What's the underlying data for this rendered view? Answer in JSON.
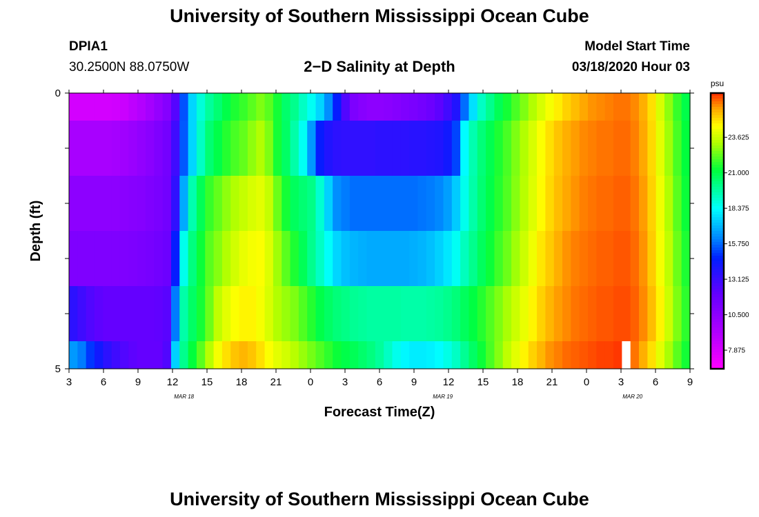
{
  "page": {
    "title": "University of Southern Mississippi Ocean Cube",
    "footer_title": "University of Southern Mississippi Ocean Cube",
    "station_id": "DPIA1",
    "station_coords": "30.2500N 88.0750W",
    "plot_subtitle": "2−D Salinity at Depth",
    "model_start_label": "Model Start Time",
    "model_start_value": "03/18/2020 Hour 03"
  },
  "chart_data": {
    "type": "heatmap",
    "title": "2-D Salinity at Depth",
    "xlabel": "Forecast Time(Z)",
    "ylabel": "Depth (ft)",
    "x_hours": [
      3,
      3.75,
      4.5,
      5.25,
      6,
      6.75,
      7.5,
      8.25,
      9,
      9.75,
      10.5,
      11.25,
      12,
      12.75,
      13.5,
      14.25,
      15,
      15.75,
      16.5,
      17.25,
      18,
      18.75,
      19.5,
      20.25,
      21,
      21.75,
      22.5,
      23.25,
      24,
      24.75,
      25.5,
      26.25,
      27,
      27.75,
      28.5,
      29.25,
      30,
      30.75,
      31.5,
      32.25,
      33,
      33.75,
      34.5,
      35.25,
      36,
      36.75,
      37.5,
      38.25,
      39,
      39.75,
      40.5,
      41.25,
      42,
      42.75,
      43.5,
      44.25,
      45,
      45.75,
      46.5,
      47.25,
      48,
      48.75,
      49.5,
      50.25,
      51,
      51.75,
      52.5,
      53.25,
      54,
      54.75,
      55.5,
      56.25,
      57
    ],
    "depth_rows_ft": [
      0.25,
      1.0,
      2.0,
      3.0,
      4.0,
      4.75
    ],
    "salinity_psu": [
      [
        8.0,
        8.0,
        8.0,
        8.0,
        8.0,
        8.1,
        8.3,
        8.7,
        9.1,
        9.6,
        10.2,
        10.8,
        12.4,
        15.4,
        17.6,
        18.9,
        19.8,
        20.4,
        21.0,
        21.5,
        21.8,
        22.2,
        22.6,
        22.2,
        21.4,
        20.5,
        20.0,
        19.2,
        18.5,
        17.6,
        16.3,
        14.5,
        12.5,
        11.1,
        10.7,
        10.5,
        10.5,
        10.6,
        10.8,
        11.0,
        11.2,
        11.4,
        11.7,
        12.2,
        12.9,
        13.8,
        15.8,
        17.8,
        19.2,
        20.0,
        20.8,
        21.4,
        22.0,
        22.6,
        23.2,
        23.8,
        24.3,
        24.7,
        25.1,
        25.4,
        25.7,
        25.9,
        26.0,
        26.1,
        26.2,
        26.2,
        26.0,
        25.6,
        24.9,
        23.8,
        22.8,
        21.8,
        21.0
      ],
      [
        9.5,
        9.5,
        9.5,
        9.5,
        9.5,
        9.6,
        9.8,
        10.0,
        10.3,
        10.6,
        11.0,
        11.4,
        13.0,
        15.5,
        17.6,
        19.2,
        20.4,
        21.0,
        21.6,
        22.0,
        22.3,
        22.8,
        23.2,
        22.6,
        21.4,
        20.6,
        19.6,
        18.5,
        16.5,
        14.5,
        13.8,
        13.5,
        13.4,
        13.4,
        13.4,
        13.4,
        13.5,
        13.5,
        13.5,
        13.5,
        13.6,
        13.6,
        13.7,
        13.8,
        14.2,
        15.2,
        18.3,
        19.5,
        20.3,
        20.9,
        21.5,
        22.0,
        22.6,
        23.2,
        23.8,
        24.4,
        24.9,
        25.3,
        25.6,
        25.8,
        26.0,
        26.1,
        26.2,
        26.2,
        26.3,
        26.3,
        26.1,
        25.7,
        25.0,
        24.0,
        23.0,
        22.0,
        21.2
      ],
      [
        10.5,
        10.5,
        10.5,
        10.5,
        10.5,
        10.5,
        10.6,
        10.7,
        10.8,
        11.0,
        11.2,
        11.5,
        13.4,
        16.8,
        19.5,
        20.8,
        21.8,
        22.3,
        22.8,
        23.2,
        23.5,
        23.8,
        24.0,
        23.5,
        22.4,
        21.4,
        20.7,
        20.4,
        20.1,
        19.0,
        17.5,
        16.3,
        16.0,
        15.8,
        15.8,
        15.8,
        15.8,
        15.8,
        15.8,
        15.8,
        15.8,
        15.9,
        16.0,
        16.2,
        16.6,
        17.4,
        18.6,
        19.6,
        20.4,
        21.0,
        21.6,
        22.1,
        22.7,
        23.3,
        23.9,
        24.5,
        25.0,
        25.4,
        25.7,
        25.9,
        26.1,
        26.2,
        26.3,
        26.3,
        26.4,
        26.4,
        26.2,
        25.8,
        25.1,
        24.2,
        23.2,
        22.2,
        21.3
      ],
      [
        11.0,
        11.0,
        11.0,
        11.0,
        11.0,
        11.0,
        11.0,
        11.1,
        11.2,
        11.3,
        11.5,
        11.7,
        14.5,
        18.6,
        20.2,
        21.3,
        22.2,
        22.7,
        23.2,
        23.7,
        24.1,
        24.3,
        24.4,
        23.9,
        23.0,
        22.2,
        21.5,
        20.8,
        20.0,
        19.2,
        18.4,
        17.6,
        17.2,
        17.0,
        16.9,
        16.8,
        16.8,
        16.8,
        16.8,
        16.8,
        16.9,
        17.0,
        17.2,
        17.5,
        17.9,
        18.5,
        19.3,
        20.0,
        20.7,
        21.3,
        21.9,
        22.4,
        23.0,
        23.6,
        24.2,
        24.8,
        25.2,
        25.6,
        25.9,
        26.1,
        26.2,
        26.3,
        26.4,
        26.4,
        26.5,
        26.5,
        26.3,
        25.9,
        25.2,
        24.3,
        23.4,
        22.4,
        21.5
      ],
      [
        13.5,
        13.0,
        12.5,
        12.2,
        12.0,
        12.0,
        12.0,
        12.0,
        12.0,
        12.0,
        12.1,
        12.3,
        16.0,
        19.6,
        20.6,
        21.4,
        22.4,
        23.4,
        24.0,
        24.4,
        24.6,
        24.6,
        24.3,
        23.8,
        23.2,
        22.9,
        22.6,
        22.1,
        21.6,
        21.0,
        20.6,
        20.3,
        20.1,
        19.9,
        19.8,
        19.7,
        19.7,
        19.7,
        19.7,
        19.6,
        19.6,
        19.6,
        19.7,
        19.8,
        20.0,
        20.3,
        20.7,
        21.1,
        21.6,
        22.1,
        22.6,
        23.1,
        23.6,
        24.1,
        24.6,
        25.1,
        25.5,
        25.8,
        26.0,
        26.2,
        26.3,
        26.4,
        26.5,
        26.5,
        26.6,
        26.6,
        26.4,
        26.0,
        25.4,
        24.6,
        23.6,
        22.6,
        21.7
      ],
      [
        16.5,
        16.0,
        15.0,
        14.2,
        13.5,
        13.0,
        12.5,
        12.2,
        12.0,
        12.0,
        12.0,
        12.5,
        17.5,
        20.0,
        21.2,
        22.2,
        23.3,
        24.3,
        24.9,
        25.3,
        25.5,
        25.3,
        24.9,
        24.4,
        24.0,
        23.7,
        23.3,
        22.9,
        22.5,
        22.1,
        21.7,
        21.3,
        21.0,
        20.8,
        20.5,
        20.2,
        19.8,
        19.2,
        18.6,
        18.2,
        18.0,
        18.0,
        18.1,
        18.3,
        18.7,
        19.2,
        19.9,
        20.6,
        21.3,
        22.0,
        22.7,
        23.4,
        24.0,
        24.6,
        25.1,
        25.5,
        25.9,
        26.1,
        26.3,
        26.4,
        26.5,
        26.6,
        26.7,
        26.7,
        26.8,
        26.6,
        26.2,
        25.6,
        24.9,
        24.0,
        23.1,
        22.2,
        21.4
      ]
    ],
    "missing_cells": [
      {
        "row": 5,
        "col": 65
      }
    ],
    "depth_range_ft": [
      0,
      5
    ],
    "x_range_hours": [
      3,
      57
    ],
    "x_tick_labels": [
      "3",
      "6",
      "9",
      "12",
      "15",
      "18",
      "21",
      "0",
      "3",
      "6",
      "9",
      "12",
      "15",
      "18",
      "21",
      "0",
      "3",
      "6",
      "9"
    ],
    "x_date_labels": [
      {
        "label": "MAR 18",
        "hour": 13
      },
      {
        "label": "MAR 19",
        "hour": 35.5
      },
      {
        "label": "MAR 20",
        "hour": 52
      }
    ],
    "y_tick_labels": [
      "0",
      "5"
    ],
    "colorbar": {
      "unit": "psu",
      "min": 6.5,
      "max": 26.9,
      "tick_values": [
        7.875,
        10.5,
        13.125,
        15.75,
        18.375,
        21.0,
        23.625
      ],
      "tick_labels": [
        "7.875",
        "10.500",
        "13.125",
        "15.750",
        "18.375",
        "21.000",
        "23.625"
      ]
    }
  }
}
